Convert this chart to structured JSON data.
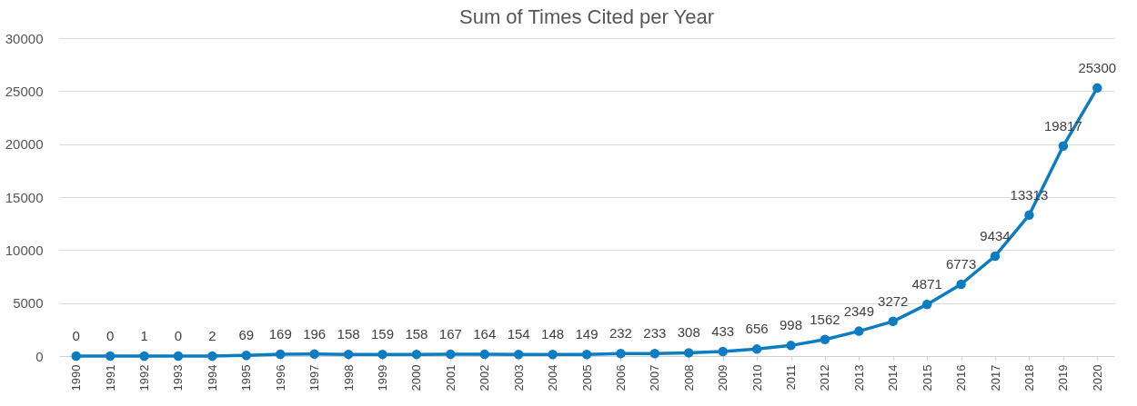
{
  "chart_data": {
    "type": "line",
    "title": "Sum of Times Cited per Year",
    "categories": [
      "1990",
      "1991",
      "1992",
      "1993",
      "1994",
      "1995",
      "1996",
      "1997",
      "1998",
      "1999",
      "2000",
      "2001",
      "2002",
      "2003",
      "2004",
      "2005",
      "2006",
      "2007",
      "2008",
      "2009",
      "2010",
      "2011",
      "2012",
      "2013",
      "2014",
      "2015",
      "2016",
      "2017",
      "2018",
      "2019",
      "2020"
    ],
    "values": [
      0,
      0,
      1,
      0,
      2,
      69,
      169,
      196,
      158,
      159,
      158,
      167,
      164,
      154,
      148,
      149,
      232,
      233,
      308,
      433,
      656,
      998,
      1562,
      2349,
      3272,
      4871,
      6773,
      9434,
      13313,
      19817,
      25300
    ],
    "color": "#0e7cc1",
    "ylim": [
      0,
      30000
    ],
    "yticks": [
      0,
      5000,
      10000,
      15000,
      20000,
      25000,
      30000
    ],
    "grid": "y",
    "marker": "circle",
    "data_labels": true
  }
}
